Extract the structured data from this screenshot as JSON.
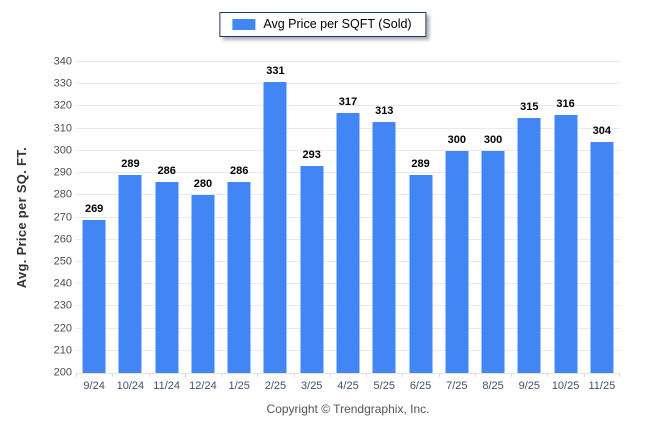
{
  "legend": {
    "label": "Avg Price per SQFT (Sold)"
  },
  "footer": {
    "copyright": "Copyright © Trendgraphix, Inc."
  },
  "colors": {
    "bar": "#4285F4",
    "legend_border": "#1E3A5F",
    "gridline": "#EAEAEA",
    "y_tick_text": "#4D4D4D",
    "x_tick_text": "#44506B",
    "value_label_text": "#000000",
    "footer_text": "#555555"
  },
  "chart_data": {
    "type": "bar",
    "title": "Avg Price per SQFT (Sold)",
    "legend_label": "Avg Price per SQFT (Sold)",
    "legend_position": "top-center",
    "categories": [
      "9/24",
      "10/24",
      "11/24",
      "12/24",
      "1/25",
      "2/25",
      "3/25",
      "4/25",
      "5/25",
      "6/25",
      "7/25",
      "8/25",
      "9/25",
      "10/25",
      "11/25"
    ],
    "values": [
      269,
      289,
      286,
      280,
      286,
      331,
      293,
      317,
      313,
      289,
      300,
      300,
      315,
      316,
      304
    ],
    "xlabel": "",
    "ylabel": "Avg. Price per SQ. FT.",
    "ylim": [
      200,
      340
    ],
    "ytick_step": 10,
    "grid": true,
    "bar_color": "#4285F4"
  }
}
